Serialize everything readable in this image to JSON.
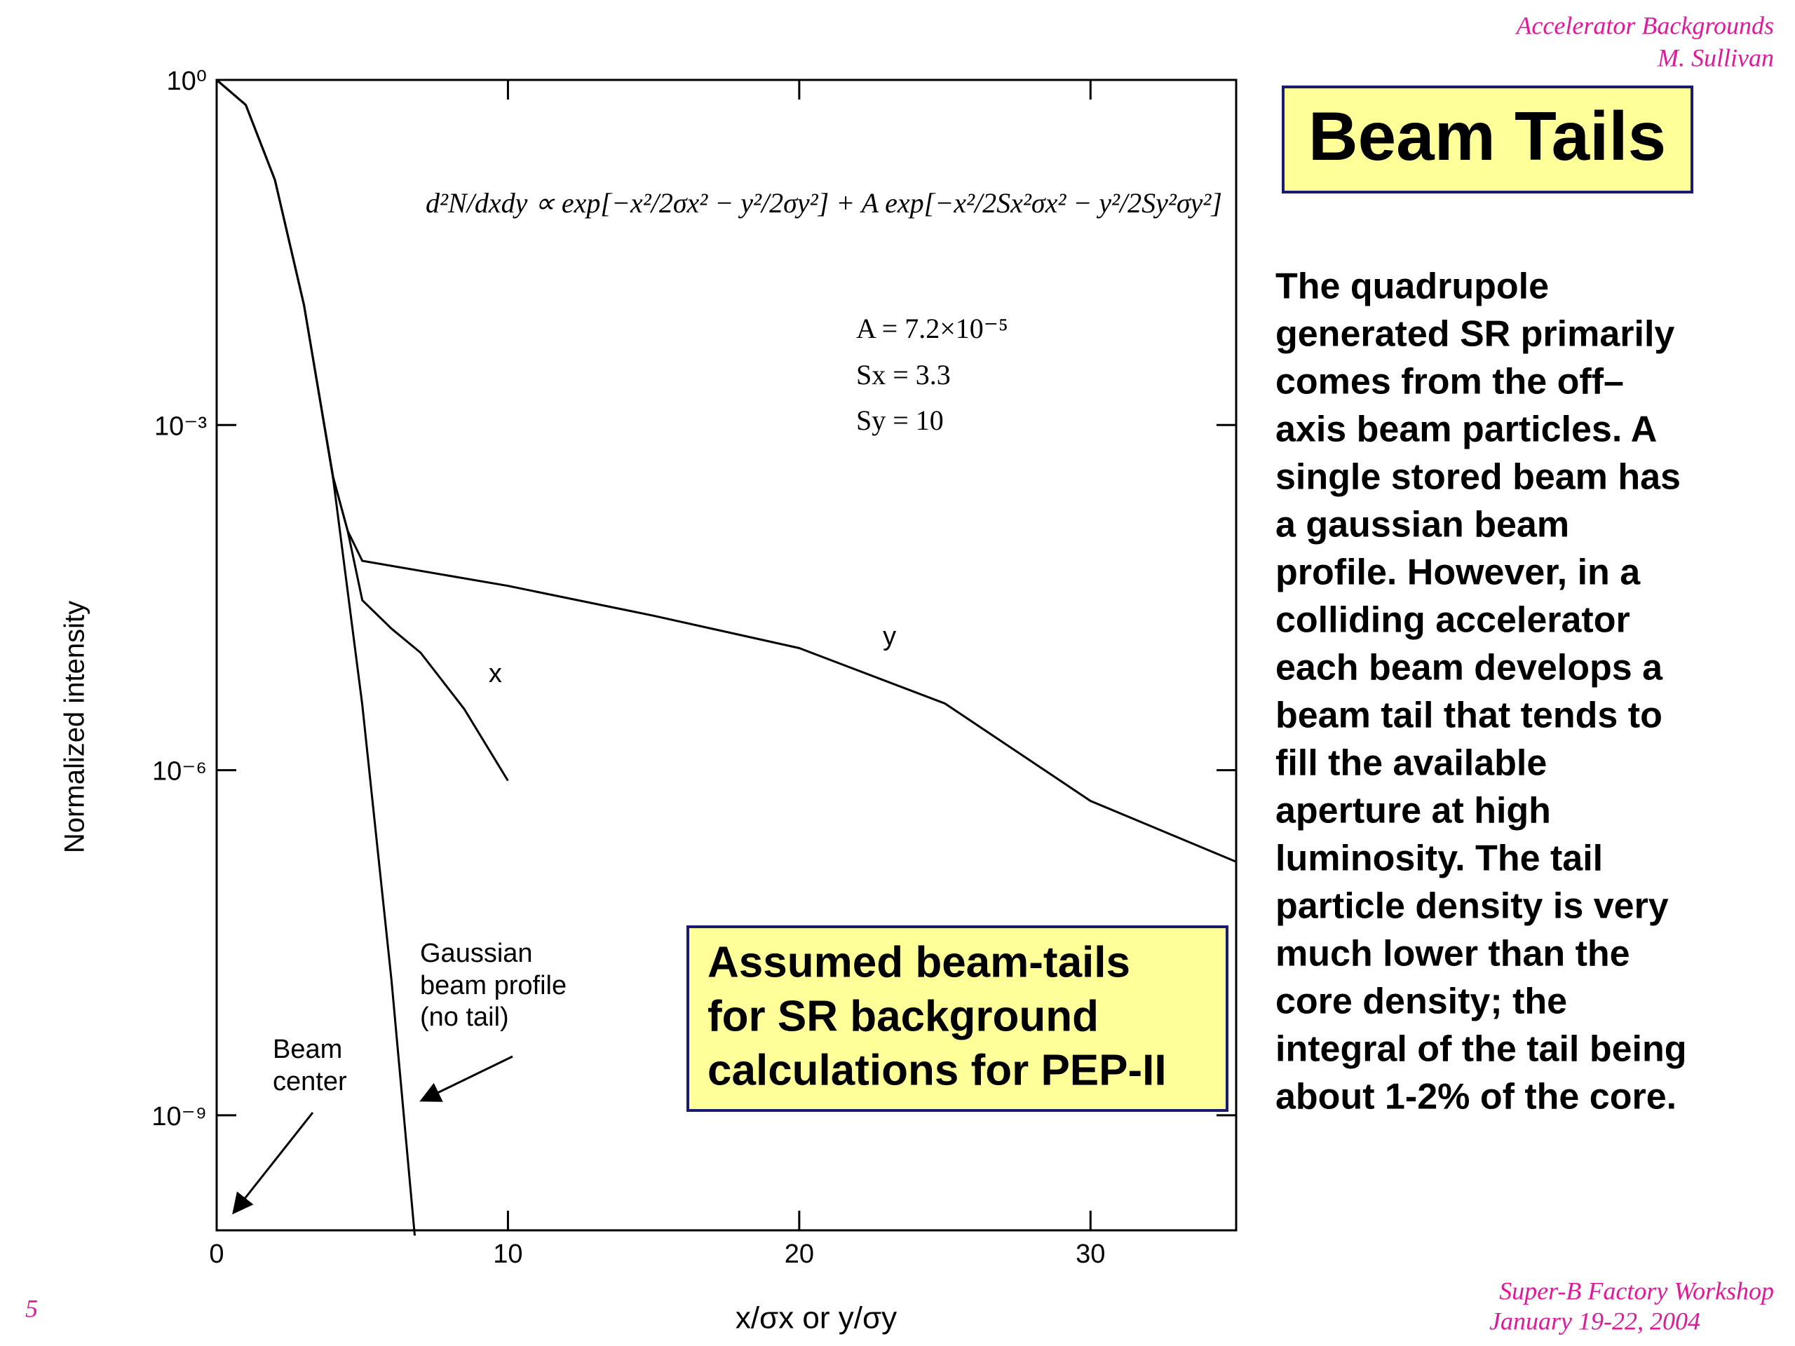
{
  "header": {
    "lines": [
      "Accelerator Backgrounds",
      "M. Sullivan"
    ]
  },
  "title": "Beam Tails",
  "body": [
    "The quadrupole",
    "generated SR primarily",
    "comes from the off–",
    "axis beam particles. A",
    "single stored beam has",
    "a gaussian beam",
    "profile. However, in a",
    "colliding accelerator",
    "each beam develops a",
    "beam tail that tends to",
    "fill the available",
    "aperture at high",
    "luminosity. The tail",
    "particle density is very",
    "much lower than the",
    "core density; the",
    "integral of the tail being",
    "about 1-2% of the core."
  ],
  "callout": [
    "Assumed beam-tails",
    "for SR background",
    "calculations for PEP-II"
  ],
  "footer": {
    "page": "5",
    "lines": [
      "Super-B Factory Workshop",
      "January 19-22, 2004"
    ]
  },
  "chart_data": {
    "type": "line",
    "xlabel": "x/σx  or  y/σy",
    "ylabel": "Normalized intensity",
    "formula": "d²N/dxdy ∝ exp[−x²/2σx² − y²/2σy²] + A exp[−x²/2Sx²σx² − y²/2Sy²σy²]",
    "parameters": [
      "A  =  7.2×10⁻⁵",
      "Sx  =  3.3",
      "Sy  =  10"
    ],
    "annotations": {
      "gaussian": [
        "Gaussian",
        "beam profile",
        "(no tail)"
      ],
      "center": [
        "Beam",
        "center"
      ]
    },
    "xlim": [
      0,
      35
    ],
    "xticks": [
      0,
      10,
      20,
      30
    ],
    "ylim": [
      1e-10,
      1
    ],
    "log_y": true,
    "yticks": [
      {
        "value": 1,
        "label": "10⁰"
      },
      {
        "value": 0.001,
        "label": "10⁻³"
      },
      {
        "value": 1e-06,
        "label": "10⁻⁶"
      },
      {
        "value": 1e-09,
        "label": "10⁻⁹"
      }
    ],
    "series": [
      {
        "name": "y",
        "color": "#000000",
        "x": [
          0,
          1,
          2,
          3,
          4,
          4.5,
          5,
          10,
          15,
          20,
          25,
          30,
          35
        ],
        "values": [
          1,
          0.607,
          0.135,
          0.011,
          0.00035,
          0.00012,
          6.6e-05,
          4e-05,
          2.2e-05,
          1.15e-05,
          3.8e-06,
          5.4e-07,
          1.6e-07
        ]
      },
      {
        "name": "x",
        "color": "#000000",
        "x": [
          0,
          1,
          2,
          3,
          4,
          4.5,
          5,
          6,
          7,
          8.5,
          10
        ],
        "values": [
          1,
          0.607,
          0.135,
          0.011,
          0.00035,
          0.00012,
          3e-05,
          1.7e-05,
          1.05e-05,
          3.4e-06,
          8.1e-07
        ]
      },
      {
        "name": "Gaussian",
        "color": "#000000",
        "x": [
          0,
          1,
          2,
          3,
          4,
          5,
          6,
          6.8
        ],
        "values": [
          1,
          0.607,
          0.135,
          0.011,
          0.00034,
          3.7e-06,
          1.5e-08,
          9e-11
        ]
      }
    ]
  }
}
